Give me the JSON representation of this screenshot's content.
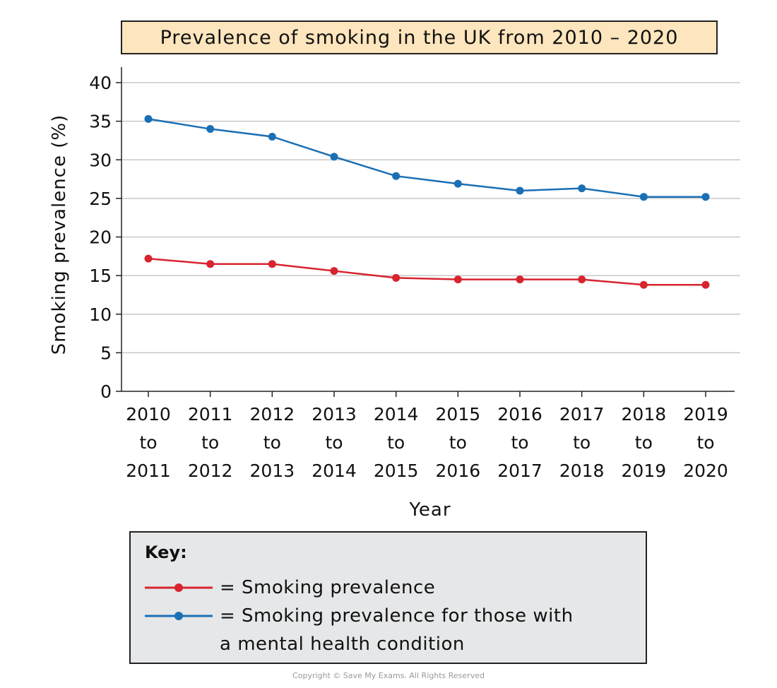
{
  "title": "Prevalence of smoking in the UK from 2010 – 2020",
  "key": {
    "heading": "Key:",
    "items": [
      {
        "text": "= Smoking prevalence",
        "color": "#d7242f"
      },
      {
        "text": "= Smoking prevalence for those with\na mental health condition",
        "color": "#1a6fb5"
      }
    ]
  },
  "copyright": "Copyright © Save My Exams. All Rights Reserved",
  "chart_data": {
    "type": "line",
    "xlabel": "Year",
    "ylabel": "Smoking prevalence (%)",
    "ylim": [
      0,
      40
    ],
    "yticks": [
      0,
      5,
      10,
      15,
      20,
      25,
      30,
      35,
      40
    ],
    "grid": true,
    "categories": [
      [
        "2010",
        "to",
        "2011"
      ],
      [
        "2011",
        "to",
        "2012"
      ],
      [
        "2012",
        "to",
        "2013"
      ],
      [
        "2013",
        "to",
        "2014"
      ],
      [
        "2014",
        "to",
        "2015"
      ],
      [
        "2015",
        "to",
        "2016"
      ],
      [
        "2016",
        "to",
        "2017"
      ],
      [
        "2017",
        "to",
        "2018"
      ],
      [
        "2018",
        "to",
        "2019"
      ],
      [
        "2019",
        "to",
        "2020"
      ]
    ],
    "series": [
      {
        "name": "Smoking prevalence for those with a mental health condition",
        "color": "#1a6fb5",
        "values": [
          35.3,
          34.0,
          33.0,
          30.4,
          27.9,
          26.9,
          26.0,
          26.3,
          25.2,
          25.2
        ]
      },
      {
        "name": "Smoking prevalence",
        "color": "#d7242f",
        "values": [
          17.2,
          16.5,
          16.5,
          15.6,
          14.7,
          14.5,
          14.5,
          14.5,
          13.8,
          13.8
        ]
      }
    ]
  }
}
